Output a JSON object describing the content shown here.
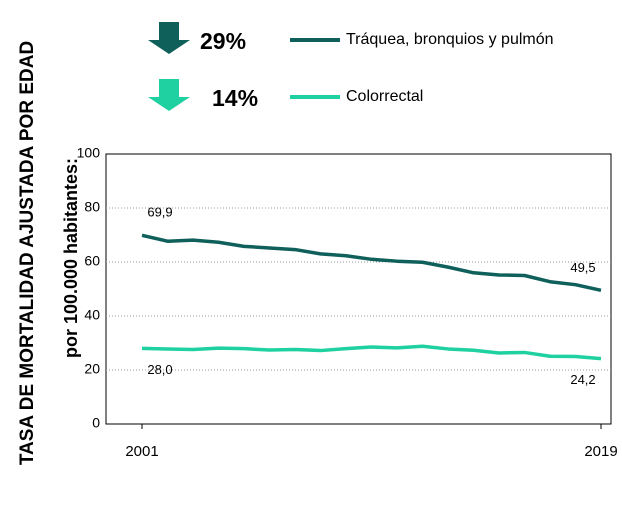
{
  "chart_data": {
    "type": "line",
    "ylabel": [
      "TASA DE MORTALIDAD AJUSTADA POR EDAD",
      "por 100.000 habitantes:"
    ],
    "x": [
      2001,
      2002,
      2003,
      2004,
      2005,
      2006,
      2007,
      2008,
      2009,
      2010,
      2011,
      2012,
      2013,
      2014,
      2015,
      2016,
      2017,
      2018,
      2019
    ],
    "xlim": [
      2001,
      2019
    ],
    "xticks": [
      2001,
      2019
    ],
    "ylim": [
      0,
      100
    ],
    "yticks": [
      0,
      20,
      40,
      60,
      80,
      100
    ],
    "grid": true,
    "series": [
      {
        "name": "Tráquea, bronquios y pulmón",
        "color": "#0f5f5a",
        "change_label": "29%",
        "values": [
          69.9,
          67.7,
          68.1,
          67.3,
          65.8,
          65.2,
          64.6,
          63.0,
          62.3,
          61.0,
          60.3,
          59.9,
          58.1,
          56.0,
          55.2,
          55.0,
          52.7,
          51.6,
          49.5
        ],
        "value_labels": [
          "69,9",
          null,
          null,
          null,
          null,
          null,
          null,
          null,
          null,
          null,
          null,
          null,
          null,
          null,
          null,
          null,
          null,
          null,
          "49,5"
        ]
      },
      {
        "name": "Colorrectal",
        "color": "#1fd1a0",
        "change_label": "14%",
        "values": [
          28.0,
          27.8,
          27.6,
          28.1,
          27.9,
          27.4,
          27.6,
          27.2,
          27.9,
          28.5,
          28.2,
          28.8,
          27.8,
          27.3,
          26.3,
          26.5,
          25.1,
          25.0,
          24.2
        ],
        "value_labels": [
          "28,0",
          null,
          null,
          null,
          null,
          null,
          null,
          null,
          null,
          null,
          null,
          null,
          null,
          null,
          null,
          null,
          null,
          null,
          "24,2"
        ]
      }
    ]
  }
}
